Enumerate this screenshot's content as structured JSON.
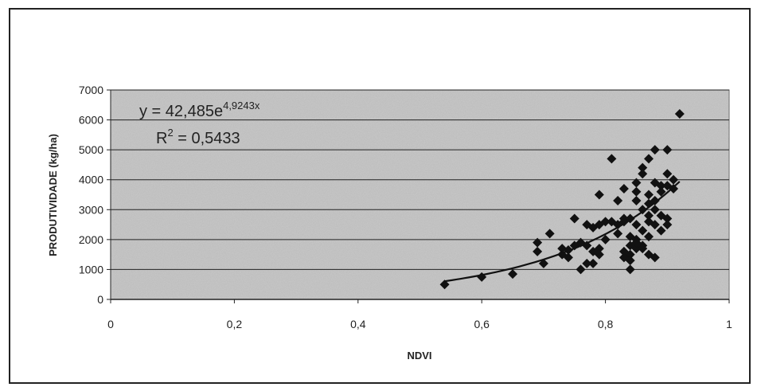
{
  "chart_data": {
    "type": "scatter",
    "xlabel": "NDVI",
    "ylabel": "PRODUTIVIDADE (kg/ha)",
    "xlim": [
      0,
      1
    ],
    "ylim": [
      0,
      7000
    ],
    "x_ticks": [
      "0",
      "0,2",
      "0,4",
      "0,6",
      "0,8",
      "1"
    ],
    "y_ticks": [
      "0",
      "1000",
      "2000",
      "3000",
      "4000",
      "5000",
      "6000",
      "7000"
    ],
    "grid": "horizontal",
    "colors": {
      "plot_bg": "#c9c9c9",
      "marker": "#111111",
      "trend": "#111111"
    },
    "equation": {
      "base": "y = 42,485e",
      "exponent": "4,9243x"
    },
    "r_squared": {
      "prefix": "R",
      "sup": "2",
      "suffix": " = 0,5433"
    },
    "trendline": {
      "type": "exponential",
      "a": 42.485,
      "b": 4.9243,
      "x_range": [
        0.54,
        0.92
      ]
    },
    "points": [
      [
        0.54,
        500
      ],
      [
        0.6,
        750
      ],
      [
        0.65,
        850
      ],
      [
        0.69,
        1600
      ],
      [
        0.69,
        1900
      ],
      [
        0.7,
        1200
      ],
      [
        0.71,
        2200
      ],
      [
        0.73,
        1500
      ],
      [
        0.73,
        1700
      ],
      [
        0.74,
        1400
      ],
      [
        0.74,
        1650
      ],
      [
        0.75,
        1800
      ],
      [
        0.75,
        2700
      ],
      [
        0.76,
        1900
      ],
      [
        0.76,
        1000
      ],
      [
        0.77,
        2500
      ],
      [
        0.77,
        1200
      ],
      [
        0.77,
        1800
      ],
      [
        0.78,
        2400
      ],
      [
        0.78,
        1600
      ],
      [
        0.78,
        1200
      ],
      [
        0.79,
        3500
      ],
      [
        0.79,
        1700
      ],
      [
        0.79,
        1500
      ],
      [
        0.79,
        2500
      ],
      [
        0.8,
        2000
      ],
      [
        0.8,
        2600
      ],
      [
        0.81,
        4700
      ],
      [
        0.81,
        2600
      ],
      [
        0.82,
        3300
      ],
      [
        0.82,
        2500
      ],
      [
        0.82,
        2200
      ],
      [
        0.83,
        3700
      ],
      [
        0.83,
        2600
      ],
      [
        0.83,
        2700
      ],
      [
        0.83,
        1600
      ],
      [
        0.83,
        1400
      ],
      [
        0.84,
        2700
      ],
      [
        0.84,
        1800
      ],
      [
        0.84,
        1500
      ],
      [
        0.84,
        1300
      ],
      [
        0.84,
        1000
      ],
      [
        0.84,
        2100
      ],
      [
        0.85,
        2500
      ],
      [
        0.85,
        3300
      ],
      [
        0.85,
        3600
      ],
      [
        0.85,
        3900
      ],
      [
        0.85,
        2000
      ],
      [
        0.85,
        1700
      ],
      [
        0.85,
        1900
      ],
      [
        0.86,
        4200
      ],
      [
        0.86,
        4400
      ],
      [
        0.86,
        3000
      ],
      [
        0.86,
        2300
      ],
      [
        0.86,
        1800
      ],
      [
        0.86,
        1700
      ],
      [
        0.87,
        4700
      ],
      [
        0.87,
        3200
      ],
      [
        0.87,
        3500
      ],
      [
        0.87,
        2800
      ],
      [
        0.87,
        2600
      ],
      [
        0.87,
        2100
      ],
      [
        0.87,
        1500
      ],
      [
        0.88,
        5000
      ],
      [
        0.88,
        3900
      ],
      [
        0.88,
        3300
      ],
      [
        0.88,
        3000
      ],
      [
        0.88,
        2500
      ],
      [
        0.88,
        1400
      ],
      [
        0.89,
        3800
      ],
      [
        0.89,
        3600
      ],
      [
        0.89,
        2800
      ],
      [
        0.89,
        2300
      ],
      [
        0.9,
        5000
      ],
      [
        0.9,
        4200
      ],
      [
        0.9,
        3800
      ],
      [
        0.9,
        2700
      ],
      [
        0.9,
        2500
      ],
      [
        0.91,
        4000
      ],
      [
        0.91,
        3700
      ],
      [
        0.92,
        6200
      ]
    ]
  }
}
